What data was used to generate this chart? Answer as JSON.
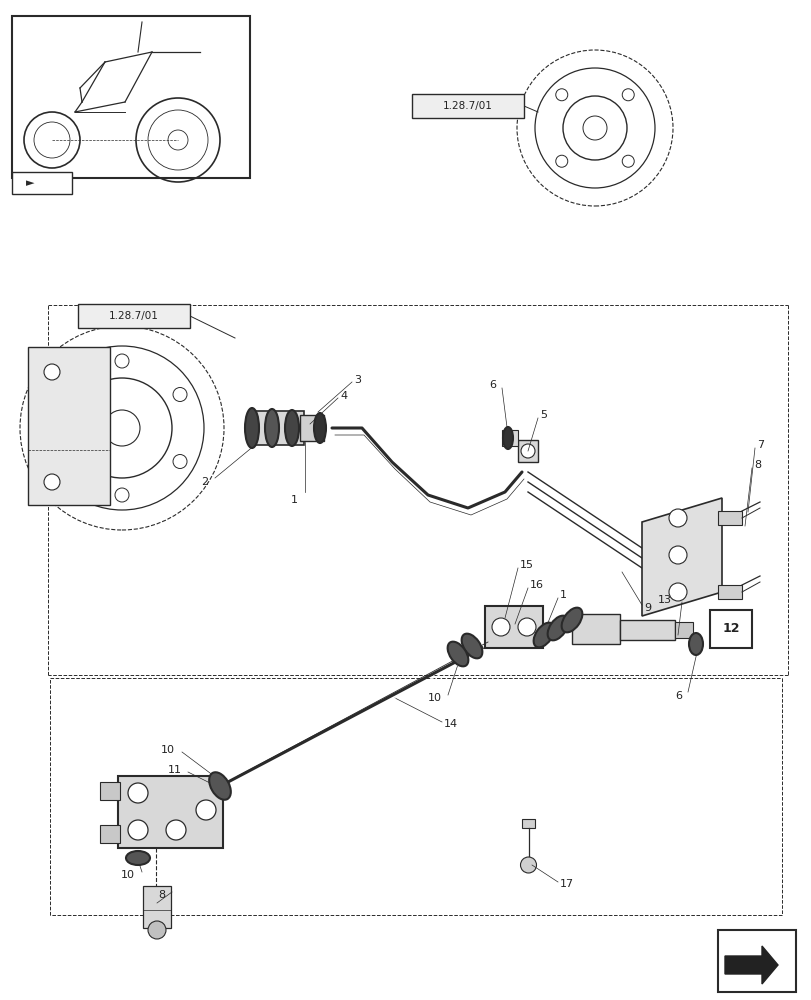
{
  "bg_color": "#ffffff",
  "line_color": "#2a2a2a",
  "label_color": "#222222",
  "fig_width": 8.12,
  "fig_height": 10.0,
  "ref_label_upper_left": "1.28.7/01",
  "ref_label_upper_right": "1.28.7/01",
  "ref_label_12": "12"
}
